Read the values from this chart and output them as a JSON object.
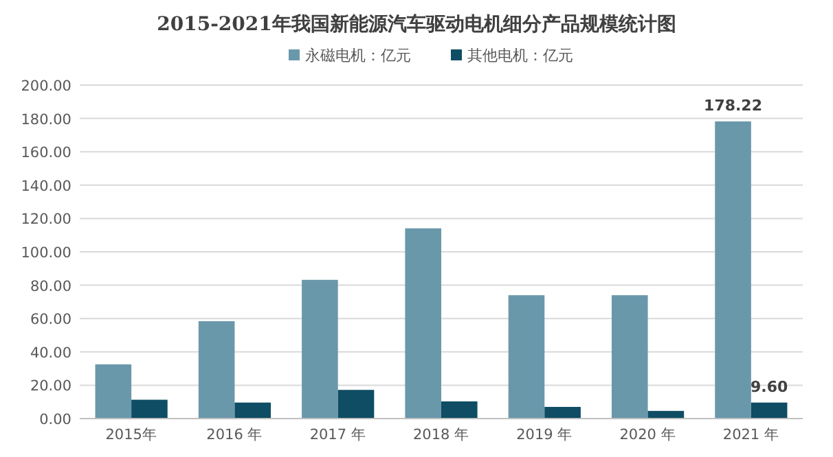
{
  "chart_data": {
    "type": "bar",
    "title": "2015-2021年我国新能源汽车驱动电机细分产品规模统计图",
    "categories": [
      "2015年",
      "2016 年",
      "2017 年",
      "2018 年",
      "2019 年",
      "2020 年",
      "2021 年"
    ],
    "series": [
      {
        "name": "永磁电机：亿元",
        "color": "#6a98ab",
        "values": [
          32.5,
          58.4,
          83.2,
          114.1,
          74,
          74,
          178.22
        ],
        "value_labels": [
          null,
          null,
          null,
          null,
          null,
          null,
          "178.22"
        ]
      },
      {
        "name": "其他电机：亿元",
        "color": "#0e4d64",
        "values": [
          11.3,
          9.6,
          17.2,
          10.3,
          7,
          4.6,
          9.6
        ],
        "value_labels": [
          null,
          null,
          null,
          null,
          null,
          null,
          "9.60"
        ]
      }
    ],
    "ylim": [
      0,
      200
    ],
    "yticks": [
      {
        "value": 0,
        "label": "0.00"
      },
      {
        "value": 20,
        "label": "20.00"
      },
      {
        "value": 40,
        "label": "40.00"
      },
      {
        "value": 60,
        "label": "60.00"
      },
      {
        "value": 80,
        "label": "80.00"
      },
      {
        "value": 100,
        "label": "100.00"
      },
      {
        "value": 120,
        "label": "120.00"
      },
      {
        "value": 140,
        "label": "140.00"
      },
      {
        "value": 160,
        "label": "160.00"
      },
      {
        "value": 180,
        "label": "180.00"
      },
      {
        "value": 200,
        "label": "200.00"
      }
    ],
    "grid": "y",
    "legend": "top"
  }
}
